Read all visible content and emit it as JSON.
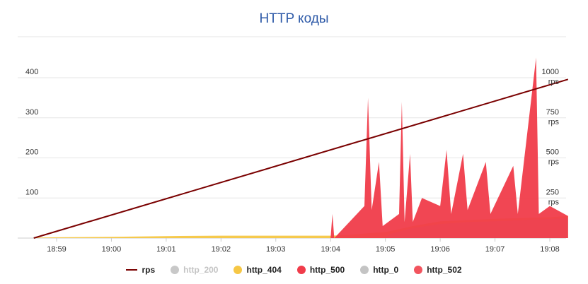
{
  "chart_data": {
    "type": "area",
    "title": "HTTP коды",
    "x_ticks": [
      "18:59",
      "19:00",
      "19:01",
      "19:02",
      "19:03",
      "19:04",
      "19:05",
      "19:06",
      "19:07",
      "19:08"
    ],
    "x_range": [
      "18:58:35",
      "19:08:20"
    ],
    "y_left": {
      "ticks": [
        "100",
        "200",
        "300",
        "400"
      ],
      "range": [
        0,
        400
      ]
    },
    "y_right": {
      "ticks": [
        "250\nrps",
        "500\nrps",
        "750\nrps",
        "1000\nrps"
      ],
      "range": [
        0,
        1000
      ]
    },
    "grid": true,
    "legend_position": "bottom",
    "series": [
      {
        "name": "rps",
        "type": "line",
        "axis": "right",
        "color": "#7a0000",
        "visible": true,
        "points": [
          [
            "18:58:35",
            0
          ],
          [
            "19:08:20",
            990
          ]
        ]
      },
      {
        "name": "http_200",
        "type": "area",
        "color": "#c8c8c8",
        "visible": false,
        "points": []
      },
      {
        "name": "http_404",
        "type": "area",
        "color": "#f6c745",
        "visible": true,
        "points": [
          [
            "18:58:35",
            1
          ],
          [
            "18:59:00",
            2
          ],
          [
            "19:00:00",
            3
          ],
          [
            "19:01:00",
            5
          ],
          [
            "19:02:00",
            6
          ],
          [
            "19:03:00",
            6
          ],
          [
            "19:04:00",
            6
          ],
          [
            "19:04:20",
            8
          ],
          [
            "19:04:40",
            12
          ],
          [
            "19:05:00",
            15
          ],
          [
            "19:05:15",
            22
          ],
          [
            "19:05:30",
            30
          ],
          [
            "19:06:00",
            42
          ],
          [
            "19:06:30",
            45
          ],
          [
            "19:07:00",
            48
          ],
          [
            "19:07:30",
            50
          ],
          [
            "19:08:00",
            52
          ],
          [
            "19:08:20",
            55
          ]
        ]
      },
      {
        "name": "http_500",
        "type": "area",
        "color": "#f03c4a",
        "visible": true,
        "points": [
          [
            "18:58:35",
            0
          ],
          [
            "19:04:00",
            0
          ],
          [
            "19:04:02",
            60
          ],
          [
            "19:04:04",
            0
          ],
          [
            "19:04:37",
            80
          ],
          [
            "19:04:41",
            350
          ],
          [
            "19:04:45",
            70
          ],
          [
            "19:04:53",
            190
          ],
          [
            "19:04:57",
            30
          ],
          [
            "19:05:15",
            60
          ],
          [
            "19:05:18",
            340
          ],
          [
            "19:05:21",
            40
          ],
          [
            "19:05:27",
            210
          ],
          [
            "19:05:30",
            40
          ],
          [
            "19:05:40",
            100
          ],
          [
            "19:06:00",
            80
          ],
          [
            "19:06:07",
            220
          ],
          [
            "19:06:12",
            60
          ],
          [
            "19:06:25",
            210
          ],
          [
            "19:06:30",
            70
          ],
          [
            "19:06:50",
            190
          ],
          [
            "19:06:55",
            60
          ],
          [
            "19:07:20",
            180
          ],
          [
            "19:07:25",
            60
          ],
          [
            "19:07:45",
            450
          ],
          [
            "19:07:48",
            60
          ],
          [
            "19:08:00",
            80
          ],
          [
            "19:08:20",
            55
          ]
        ]
      },
      {
        "name": "http_0",
        "type": "area",
        "color": "#c4c4c4",
        "visible": true,
        "points": [
          [
            "18:58:35",
            0
          ],
          [
            "19:05:00",
            0
          ],
          [
            "19:05:05",
            10
          ],
          [
            "19:05:30",
            25
          ],
          [
            "19:06:00",
            35
          ],
          [
            "19:06:30",
            40
          ],
          [
            "19:07:00",
            42
          ],
          [
            "19:07:30",
            45
          ],
          [
            "19:08:00",
            48
          ],
          [
            "19:08:20",
            50
          ]
        ]
      },
      {
        "name": "http_502",
        "type": "area",
        "color": "#f2545e",
        "visible": true,
        "points": [
          [
            "18:58:35",
            0
          ],
          [
            "19:08:20",
            0
          ]
        ]
      }
    ]
  }
}
